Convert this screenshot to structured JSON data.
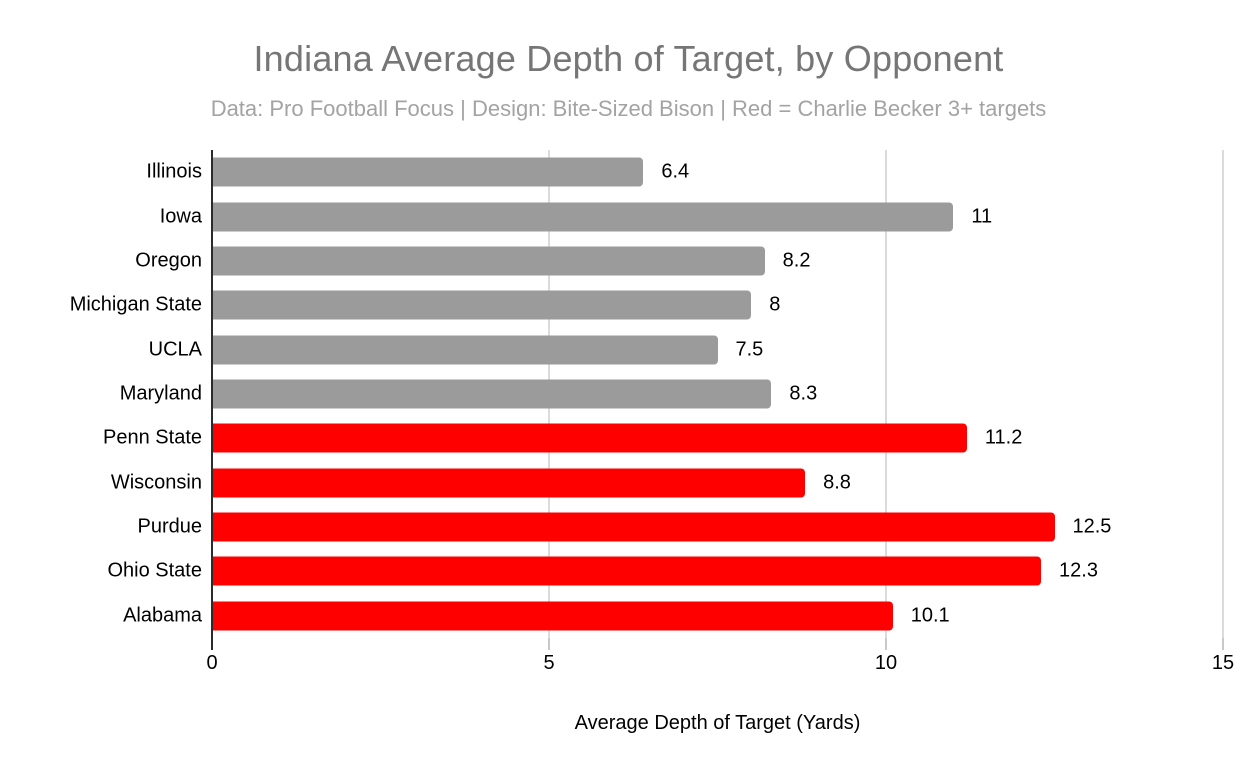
{
  "header": {
    "title": "Indiana Average Depth of Target, by Opponent",
    "subtitle": "Data: Pro Football Focus | Design: Bite-Sized Bison | Red = Charlie Becker 3+ targets"
  },
  "colors": {
    "bar_gray": "#9b9b9b",
    "bar_red": "#ff0000",
    "title_text": "#767676",
    "subtitle_text": "#a3a3a3",
    "gridline": "#dbdbdb",
    "axis_line": "#2b2b2b",
    "label_text": "#000000"
  },
  "chart_data": {
    "type": "bar",
    "orientation": "horizontal",
    "title": "Indiana Average Depth of Target, by Opponent",
    "subtitle": "Data: Pro Football Focus | Design: Bite-Sized Bison | Red = Charlie Becker 3+ targets",
    "categories": [
      "Illinois",
      "Iowa",
      "Oregon",
      "Michigan State",
      "UCLA",
      "Maryland",
      "Penn State",
      "Wisconsin",
      "Purdue",
      "Ohio State",
      "Alabama"
    ],
    "values": [
      6.4,
      11,
      8.2,
      8,
      7.5,
      8.3,
      11.2,
      8.8,
      12.5,
      12.3,
      10.1
    ],
    "value_labels": [
      "6.4",
      "11",
      "8.2",
      "8",
      "7.5",
      "8.3",
      "11.2",
      "8.8",
      "12.5",
      "12.3",
      "10.1"
    ],
    "bar_colors": [
      "#9b9b9b",
      "#9b9b9b",
      "#9b9b9b",
      "#9b9b9b",
      "#9b9b9b",
      "#9b9b9b",
      "#ff0000",
      "#ff0000",
      "#ff0000",
      "#ff0000",
      "#ff0000"
    ],
    "color_legend_note": "Red = Charlie Becker 3+ targets",
    "xlabel": "Average Depth of Target (Yards)",
    "ylabel": "",
    "xlim": [
      0,
      15
    ],
    "xticks": [
      0,
      5,
      10,
      15
    ],
    "grid": "vertical gridlines at 5, 10, 15",
    "legend": "none"
  }
}
